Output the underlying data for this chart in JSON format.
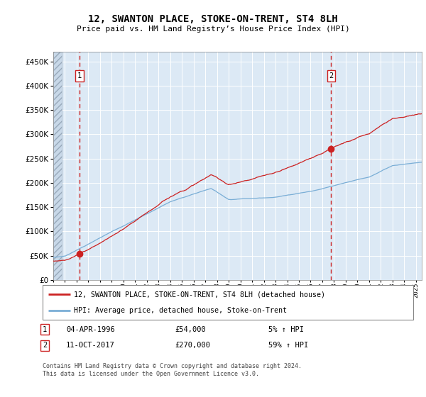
{
  "title": "12, SWANTON PLACE, STOKE-ON-TRENT, ST4 8LH",
  "subtitle": "Price paid vs. HM Land Registry’s House Price Index (HPI)",
  "background_color": "#dce9f5",
  "grid_color": "#ffffff",
  "line_color_hpi": "#7aaed6",
  "line_color_price": "#cc2222",
  "t1_year": 1996.25,
  "t1_price": 54000,
  "t2_year": 2017.75,
  "t2_price": 270000,
  "legend_line1": "12, SWANTON PLACE, STOKE-ON-TRENT, ST4 8LH (detached house)",
  "legend_line2": "HPI: Average price, detached house, Stoke-on-Trent",
  "copyright": "Contains HM Land Registry data © Crown copyright and database right 2024.\nThis data is licensed under the Open Government Licence v3.0.",
  "ylim": [
    0,
    470000
  ],
  "yticks": [
    0,
    50000,
    100000,
    150000,
    200000,
    250000,
    300000,
    350000,
    400000,
    450000
  ],
  "xlim_start": 1994.0,
  "xlim_end": 2025.5
}
